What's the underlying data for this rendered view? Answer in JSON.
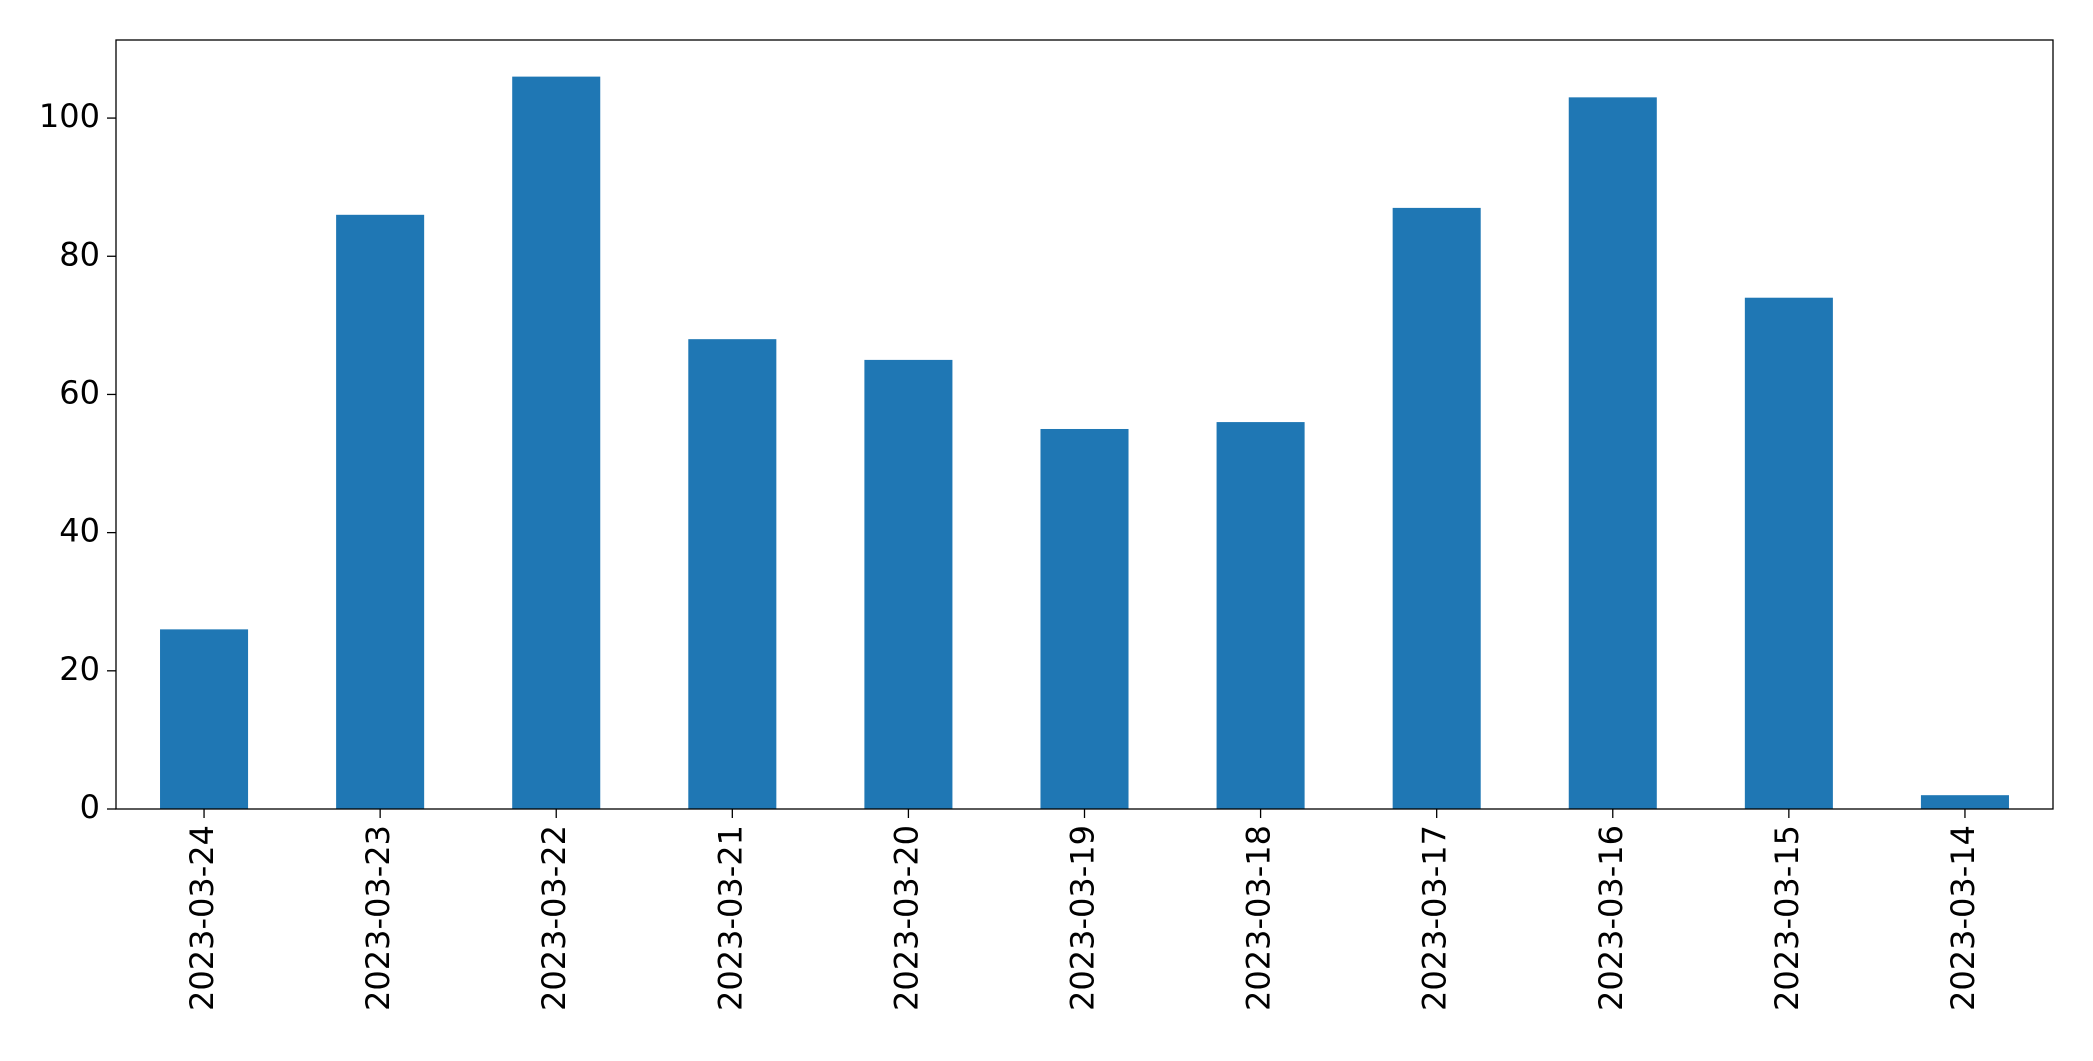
{
  "chart_data": {
    "type": "bar",
    "categories": [
      "2023-03-24",
      "2023-03-23",
      "2023-03-22",
      "2023-03-21",
      "2023-03-20",
      "2023-03-19",
      "2023-03-18",
      "2023-03-17",
      "2023-03-16",
      "2023-03-15",
      "2023-03-14"
    ],
    "values": [
      26,
      86,
      106,
      68,
      65,
      55,
      56,
      87,
      103,
      74,
      2
    ],
    "color": "#1f77b4",
    "ylim": [
      0,
      111.3
    ],
    "yticks": [
      0,
      20,
      40,
      60,
      80,
      100
    ],
    "grid": false
  }
}
